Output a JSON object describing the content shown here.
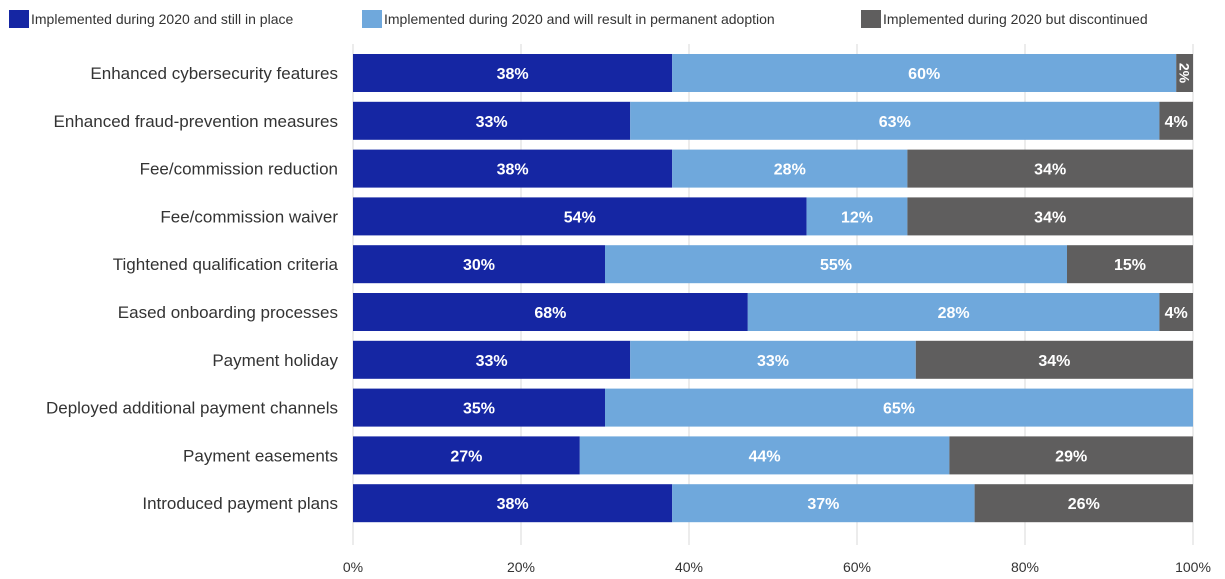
{
  "chart_data": {
    "type": "bar",
    "orientation": "horizontal",
    "stacked": true,
    "legend_position": "top",
    "grid": true,
    "xlim": [
      0,
      100
    ],
    "x_ticks": [
      "0%",
      "20%",
      "40%",
      "60%",
      "80%",
      "100%"
    ],
    "categories": [
      "Enhanced cybersecurity features",
      "Enhanced fraud-prevention measures",
      "Fee/commission reduction",
      "Fee/commission waiver",
      "Tightened qualification criteria",
      "Eased onboarding processes",
      "Payment holiday",
      "Deployed additional payment channels",
      "Payment easements",
      "Introduced payment plans"
    ],
    "series": [
      {
        "name": "Implemented during 2020 and still in place",
        "color": "#1526a3",
        "values": [
          38,
          33,
          38,
          54,
          30,
          68,
          33,
          35,
          27,
          38
        ],
        "display_values": [
          38,
          33,
          38,
          54,
          30,
          47,
          33,
          30,
          27,
          38
        ],
        "labels": [
          "38%",
          "33%",
          "38%",
          "54%",
          "30%",
          "68%",
          "33%",
          "35%",
          "27%",
          "38%"
        ]
      },
      {
        "name": "Implemented during 2020 and will result in permanent adoption",
        "color": "#6fa8dc",
        "values": [
          60,
          63,
          28,
          12,
          55,
          28,
          33,
          65,
          44,
          37
        ],
        "display_values": [
          60,
          63,
          28,
          12,
          55,
          49,
          34,
          70,
          44,
          36
        ],
        "labels": [
          "60%",
          "63%",
          "28%",
          "12%",
          "55%",
          "28%",
          "33%",
          "65%",
          "44%",
          "37%"
        ]
      },
      {
        "name": "Implemented during 2020 but discontinued",
        "color": "#5f5e5e",
        "values": [
          2,
          4,
          34,
          34,
          15,
          4,
          34,
          0,
          29,
          26
        ],
        "display_values": [
          2,
          4,
          34,
          34,
          15,
          4,
          33,
          0,
          29,
          26
        ],
        "labels": [
          "2%",
          "4%",
          "34%",
          "34%",
          "15%",
          "4%",
          "34%",
          "",
          "29%",
          "26%"
        ]
      }
    ]
  }
}
